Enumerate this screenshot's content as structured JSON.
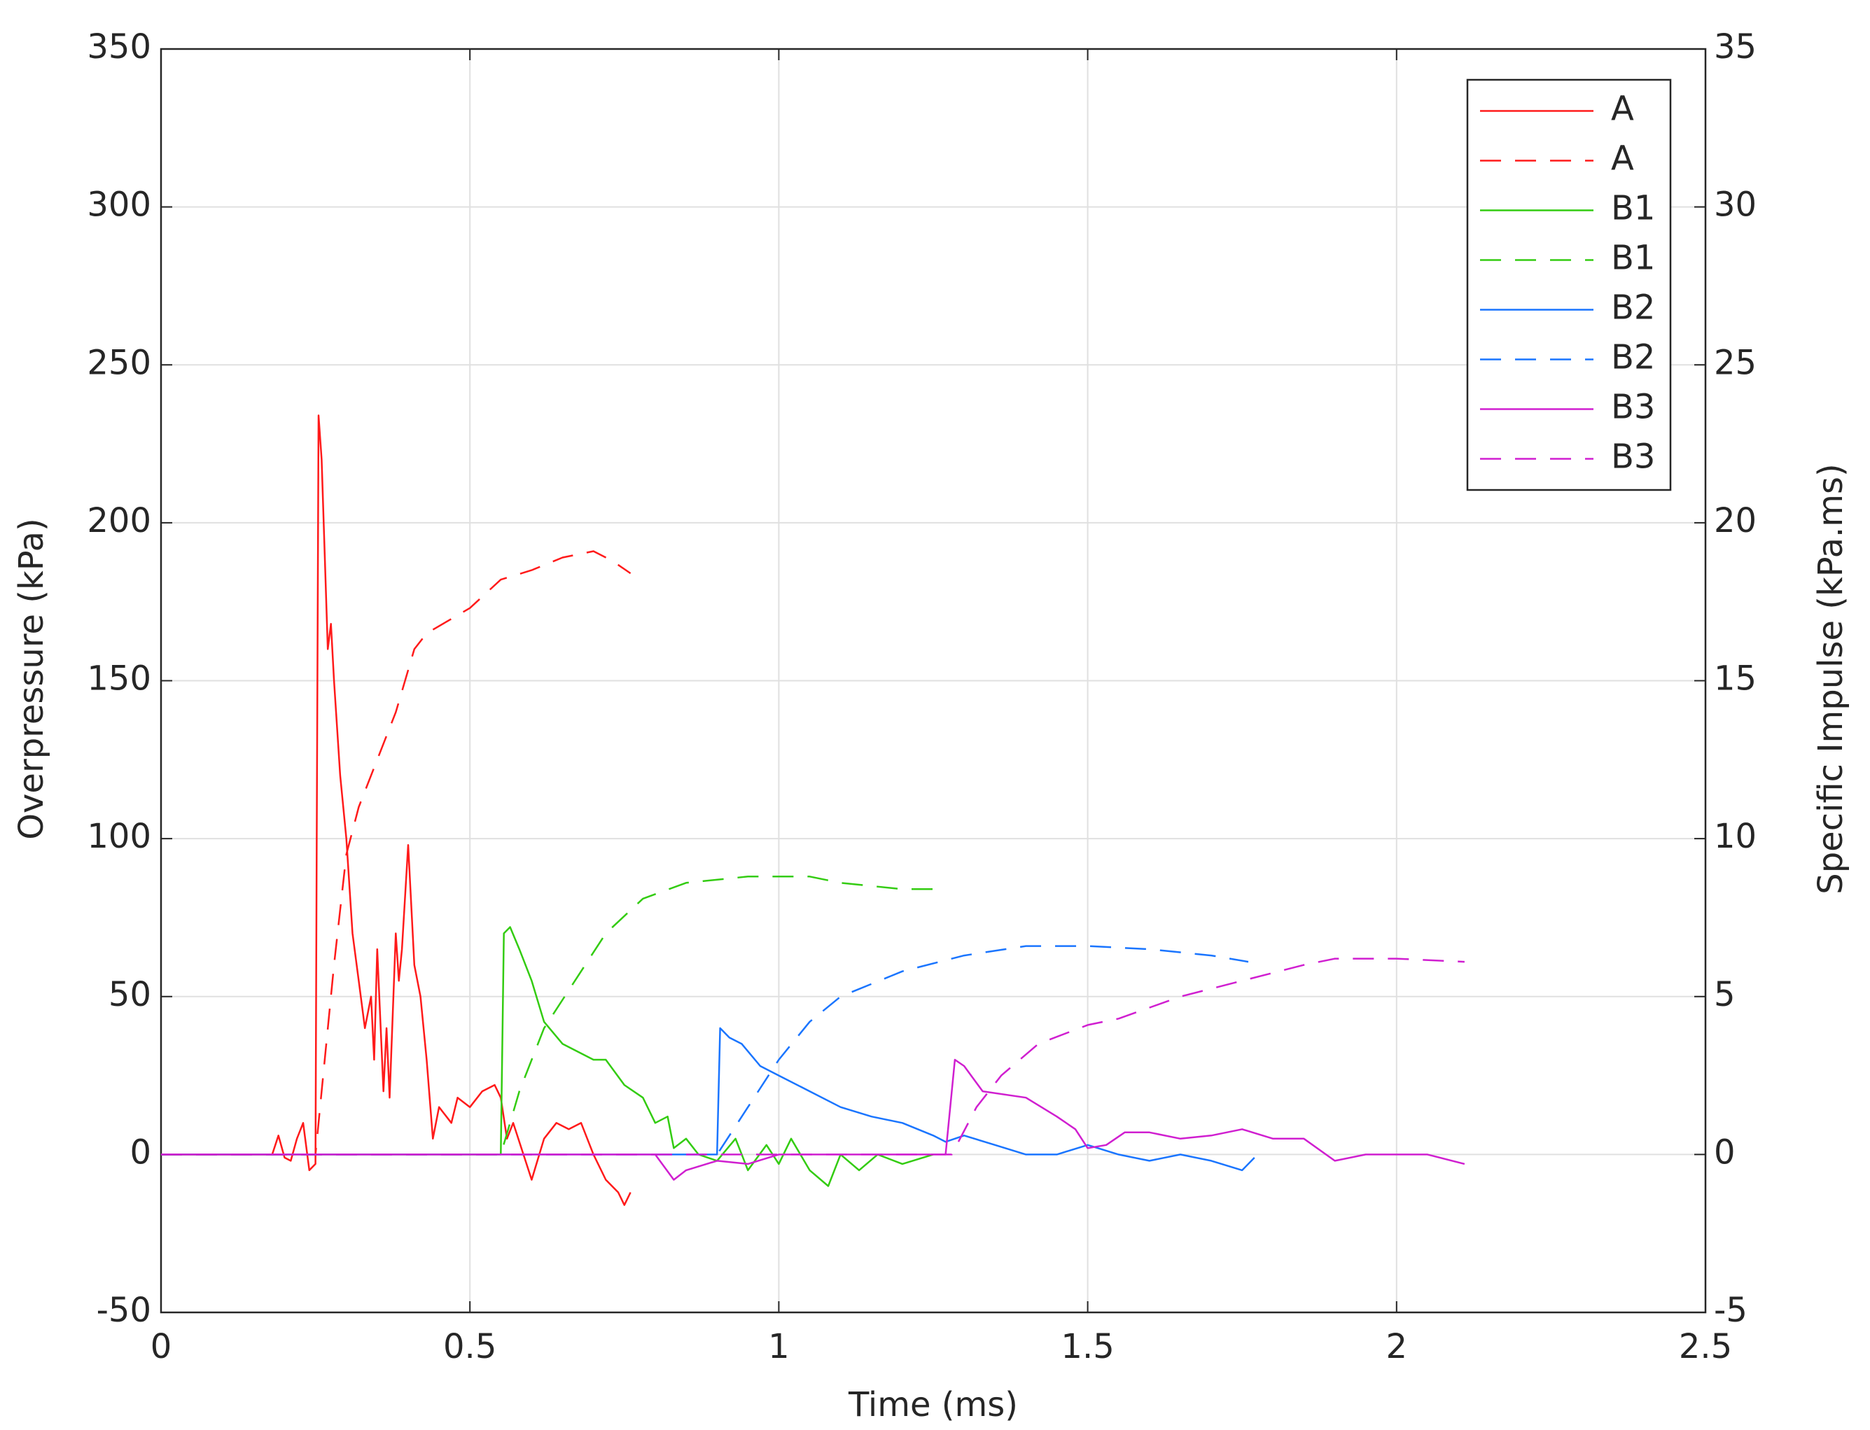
{
  "chart_data": {
    "type": "line",
    "xlabel": "Time (ms)",
    "ylabel": "Overpressure (kPa)",
    "y2label": "Specific Impulse (kPa.ms)",
    "xlim": [
      0,
      2.5
    ],
    "xticks": [
      0,
      0.5,
      1,
      1.5,
      2,
      2.5
    ],
    "ylim": [
      -50,
      350
    ],
    "yticks": [
      -50,
      0,
      50,
      100,
      150,
      200,
      250,
      300,
      350
    ],
    "y2lim": [
      -5,
      35
    ],
    "y2ticks": [
      -5,
      0,
      5,
      10,
      15,
      20,
      25,
      30,
      35
    ],
    "grid": true,
    "legend": "top-right",
    "series": [
      {
        "name": "A",
        "color": "#ff1a1a",
        "linestyle": "solid",
        "x": [
          0,
          0.18,
          0.19,
          0.2,
          0.21,
          0.22,
          0.23,
          0.24,
          0.25,
          0.252,
          0.255,
          0.26,
          0.265,
          0.27,
          0.275,
          0.28,
          0.29,
          0.3,
          0.31,
          0.32,
          0.33,
          0.34,
          0.345,
          0.35,
          0.36,
          0.365,
          0.37,
          0.38,
          0.385,
          0.39,
          0.4,
          0.41,
          0.42,
          0.43,
          0.44,
          0.45,
          0.47,
          0.48,
          0.5,
          0.52,
          0.54,
          0.55,
          0.56,
          0.57,
          0.59,
          0.6,
          0.62,
          0.64,
          0.66,
          0.68,
          0.7,
          0.72,
          0.74,
          0.75,
          0.76
        ],
        "values": [
          0,
          0,
          6,
          -1,
          -2,
          5,
          10,
          -5,
          -3,
          100,
          234,
          220,
          190,
          160,
          168,
          150,
          120,
          100,
          70,
          55,
          40,
          50,
          30,
          65,
          20,
          40,
          18,
          70,
          55,
          65,
          98,
          60,
          50,
          30,
          5,
          15,
          10,
          18,
          15,
          20,
          22,
          18,
          5,
          10,
          -2,
          -8,
          5,
          10,
          8,
          10,
          0,
          -8,
          -12,
          -16,
          -12
        ]
      },
      {
        "name": "A",
        "color": "#ff1a1a",
        "linestyle": "dashed",
        "axis": "y2",
        "x": [
          0,
          0.25,
          0.26,
          0.28,
          0.3,
          0.32,
          0.35,
          0.38,
          0.41,
          0.43,
          0.5,
          0.55,
          0.6,
          0.65,
          0.7,
          0.73,
          0.76
        ],
        "values": [
          0,
          0,
          2,
          6,
          9.5,
          11,
          12.5,
          14,
          16,
          16.5,
          17.3,
          18.2,
          18.5,
          18.9,
          19.1,
          18.8,
          18.4
        ]
      },
      {
        "name": "B1",
        "color": "#33cc11",
        "linestyle": "solid",
        "x": [
          0,
          0.55,
          0.555,
          0.565,
          0.58,
          0.6,
          0.62,
          0.65,
          0.7,
          0.72,
          0.75,
          0.78,
          0.8,
          0.82,
          0.83,
          0.85,
          0.87,
          0.9,
          0.93,
          0.95,
          0.98,
          1.0,
          1.02,
          1.05,
          1.08,
          1.1,
          1.13,
          1.16,
          1.2,
          1.25
        ],
        "values": [
          0,
          0,
          70,
          72,
          65,
          55,
          42,
          35,
          30,
          30,
          22,
          18,
          10,
          12,
          2,
          5,
          0,
          -2,
          5,
          -5,
          3,
          -3,
          5,
          -5,
          -10,
          0,
          -5,
          0,
          -3,
          0
        ]
      },
      {
        "name": "B1",
        "color": "#33cc11",
        "linestyle": "dashed",
        "axis": "y2",
        "x": [
          0,
          0.55,
          0.58,
          0.62,
          0.67,
          0.72,
          0.78,
          0.85,
          0.95,
          1.05,
          1.1,
          1.2,
          1.25
        ],
        "values": [
          0,
          0,
          2,
          4,
          5.5,
          7,
          8.1,
          8.6,
          8.8,
          8.8,
          8.6,
          8.4,
          8.4
        ]
      },
      {
        "name": "B2",
        "color": "#1a75ff",
        "linestyle": "solid",
        "x": [
          0,
          0.9,
          0.905,
          0.92,
          0.94,
          0.97,
          1.0,
          1.05,
          1.1,
          1.15,
          1.2,
          1.25,
          1.27,
          1.3,
          1.35,
          1.4,
          1.45,
          1.5,
          1.55,
          1.6,
          1.65,
          1.7,
          1.75,
          1.77
        ],
        "values": [
          0,
          0,
          40,
          37,
          35,
          28,
          25,
          20,
          15,
          12,
          10,
          6,
          4,
          6,
          3,
          0,
          0,
          3,
          0,
          -2,
          0,
          -2,
          -5,
          -1
        ]
      },
      {
        "name": "B2",
        "color": "#1a75ff",
        "linestyle": "dashed",
        "axis": "y2",
        "x": [
          0,
          0.9,
          0.95,
          1.0,
          1.05,
          1.1,
          1.2,
          1.3,
          1.4,
          1.5,
          1.6,
          1.7,
          1.76
        ],
        "values": [
          0,
          0,
          1.5,
          3,
          4.2,
          5,
          5.8,
          6.3,
          6.6,
          6.6,
          6.5,
          6.3,
          6.1
        ]
      },
      {
        "name": "B3",
        "color": "#d01fd0",
        "linestyle": "solid",
        "x": [
          0,
          0.8,
          0.83,
          0.85,
          0.9,
          0.95,
          1.0,
          1.1,
          1.2,
          1.27,
          1.285,
          1.3,
          1.33,
          1.4,
          1.45,
          1.48,
          1.5,
          1.53,
          1.56,
          1.6,
          1.65,
          1.7,
          1.75,
          1.8,
          1.85,
          1.9,
          1.95,
          2.0,
          2.05,
          2.11
        ],
        "values": [
          0,
          0,
          -8,
          -5,
          -2,
          -3,
          0,
          0,
          0,
          0,
          30,
          28,
          20,
          18,
          12,
          8,
          2,
          3,
          7,
          7,
          5,
          6,
          8,
          5,
          5,
          -2,
          0,
          0,
          0,
          -3
        ]
      },
      {
        "name": "B3",
        "color": "#d01fd0",
        "linestyle": "dashed",
        "axis": "y2",
        "x": [
          0,
          1.28,
          1.32,
          1.36,
          1.42,
          1.5,
          1.55,
          1.65,
          1.75,
          1.85,
          1.9,
          2.0,
          2.11
        ],
        "values": [
          0,
          0,
          1.5,
          2.5,
          3.5,
          4.1,
          4.3,
          5,
          5.5,
          6,
          6.2,
          6.2,
          6.1
        ]
      }
    ]
  }
}
